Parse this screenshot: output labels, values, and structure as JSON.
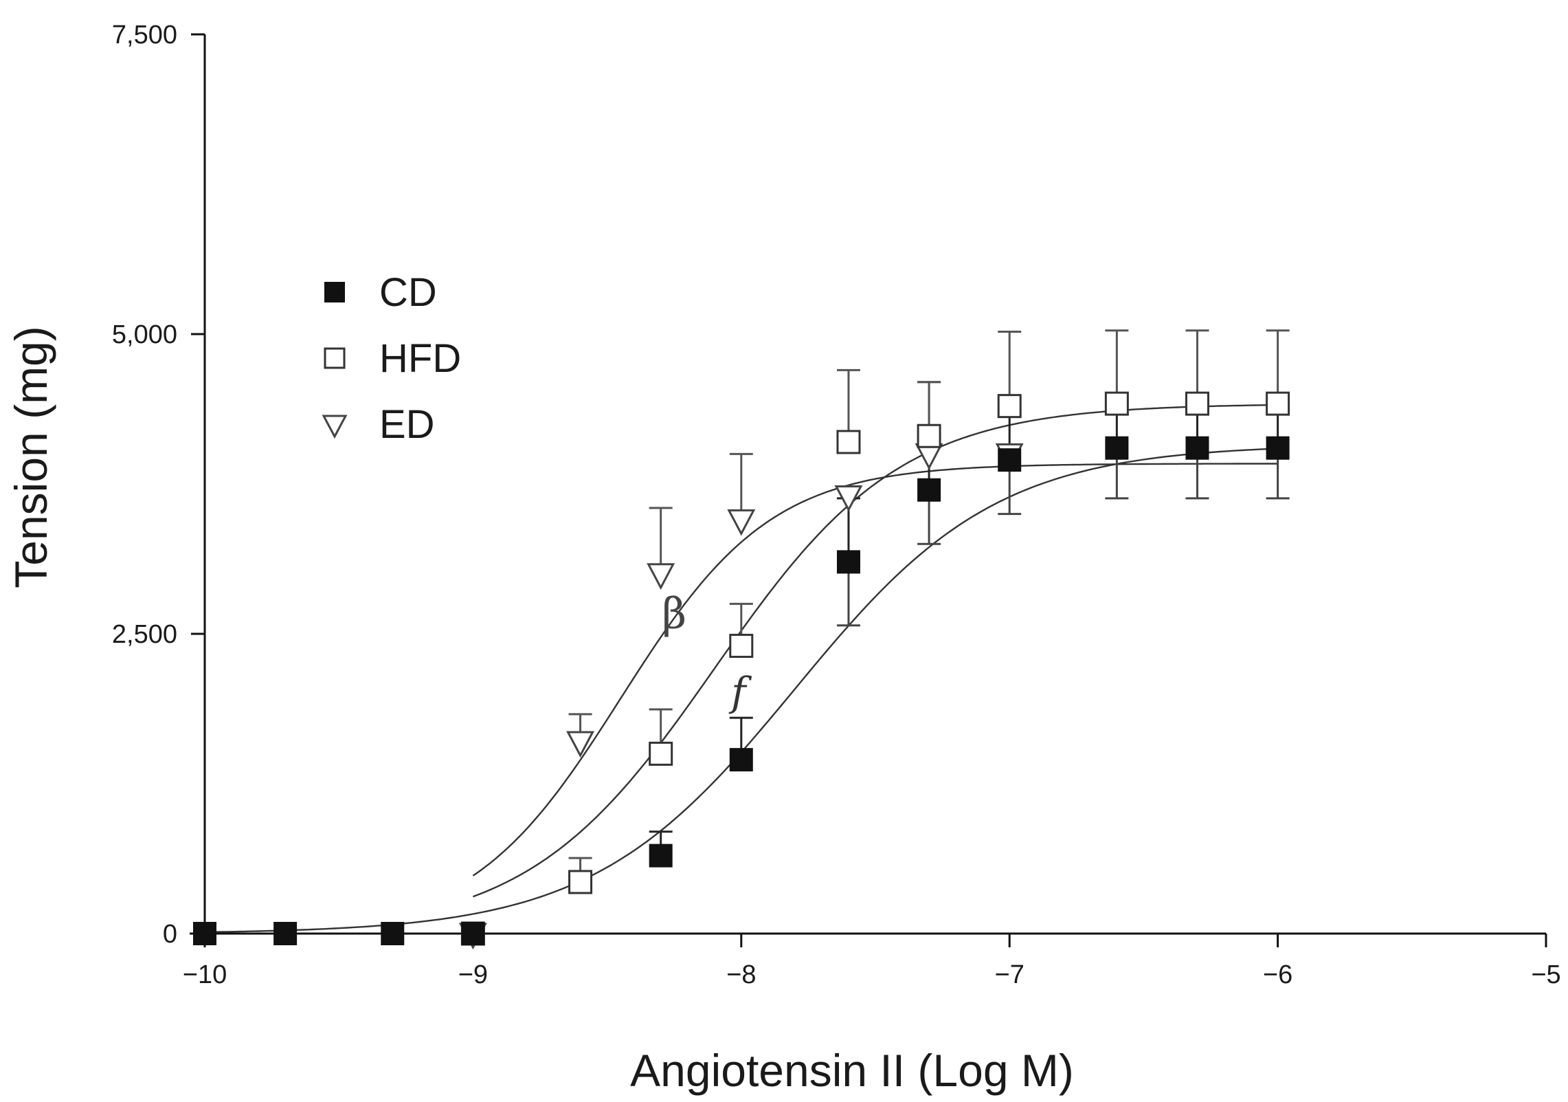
{
  "chart_data": {
    "type": "line",
    "title": "",
    "xlabel": "Angiotensin II  (Log M)",
    "ylabel": "Tension (mg)",
    "xlim": [
      -10,
      -5
    ],
    "ylim": [
      0,
      7500
    ],
    "x_ticks": [
      -10,
      -9,
      -8,
      -7,
      -6,
      -5
    ],
    "x_tick_labels": [
      "−10",
      "−9",
      "−8",
      "−7",
      "−6",
      "−5"
    ],
    "y_ticks": [
      0,
      2500,
      5000,
      7500
    ],
    "y_tick_labels": [
      "0",
      "2,500",
      "5,000",
      "7,500"
    ],
    "grid": false,
    "legend_position": "upper-left",
    "series": [
      {
        "name": "CD",
        "marker": "filled-square",
        "x": [
          -10,
          -9.7,
          -9.3,
          -9,
          -8.3,
          -8,
          -7.6,
          -7.3,
          -7,
          -6.6,
          -6.3,
          -6
        ],
        "y": [
          0,
          0,
          0,
          0,
          650,
          1450,
          3100,
          3700,
          3950,
          4050,
          4050,
          4050
        ],
        "err": [
          0,
          0,
          0,
          0,
          200,
          350,
          530,
          450,
          450,
          420,
          420,
          420
        ],
        "curve": {
          "bottom": 0,
          "top": 4080,
          "logEC50": -7.8,
          "hill": 1.15
        }
      },
      {
        "name": "HFD",
        "marker": "open-square",
        "x": [
          -9,
          -8.6,
          -8.3,
          -8,
          -7.6,
          -7.3,
          -7,
          -6.6,
          -6.3,
          -6
        ],
        "y": [
          0,
          430,
          1500,
          2400,
          4100,
          4150,
          4400,
          4420,
          4420,
          4420
        ],
        "err": [
          0,
          200,
          370,
          350,
          600,
          450,
          620,
          610,
          610,
          610
        ],
        "curve": {
          "bottom": 0,
          "top": 4420,
          "logEC50": -8.1,
          "hill": 1.25
        }
      },
      {
        "name": "ED",
        "marker": "open-triangle-down",
        "x": [
          -9,
          -8.6,
          -8.3,
          -8,
          -7.6,
          -7.3,
          -7
        ],
        "y": [
          0,
          1600,
          3000,
          3450,
          3650,
          4000,
          4000
        ],
        "err": [
          0,
          230,
          550,
          550,
          0,
          600,
          0
        ],
        "curve": {
          "bottom": 0,
          "top": 3920,
          "logEC50": -8.45,
          "hill": 1.55
        }
      }
    ],
    "annotations": [
      {
        "text": "β",
        "x": -8.25,
        "y": 2550
      },
      {
        "text": "f",
        "x": -8.01,
        "y": 1900
      }
    ]
  }
}
